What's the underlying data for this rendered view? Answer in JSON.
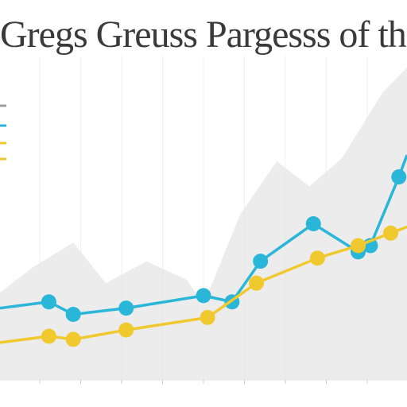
{
  "chart_data": {
    "type": "line",
    "title": "Gregs Greuss Pargesss of the Greg",
    "xlabel": "",
    "ylabel": "",
    "x_ticks": [
      "",
      "",
      "",
      "",
      "",
      "",
      "",
      "",
      "",
      ""
    ],
    "xlim": [
      0,
      10
    ],
    "ylim": [
      0,
      100
    ],
    "grid": true,
    "legend": {
      "position": "top-left",
      "entries": [
        {
          "label": "",
          "color": "#9e9e9e"
        },
        {
          "label": "",
          "color": "#29b6d8"
        },
        {
          "label": "",
          "color": "#f0c92f"
        },
        {
          "label": "",
          "color": "#f0c92f"
        }
      ]
    },
    "area": {
      "name": "",
      "color": "#e6e6e6",
      "x": [
        0,
        0.8,
        1.8,
        2.6,
        3.6,
        4.6,
        5.0,
        5.9,
        6.8,
        7.6,
        8.4,
        9.4,
        10.0
      ],
      "values": [
        28,
        36,
        44,
        31,
        38,
        32,
        24,
        53,
        70,
        62,
        71,
        92,
        100
      ]
    },
    "series": [
      {
        "name": "",
        "color": "#29b6d8",
        "x": [
          0,
          1.2,
          1.8,
          3.1,
          5.0,
          5.7,
          6.4,
          7.7,
          8.8,
          9.1,
          9.8,
          10.0
        ],
        "values": [
          23,
          25,
          21,
          23,
          27,
          25,
          38,
          50,
          41,
          43,
          65,
          72
        ]
      },
      {
        "name": "",
        "color": "#f0c92f",
        "x": [
          0,
          1.2,
          1.8,
          3.1,
          5.1,
          6.3,
          7.8,
          8.8,
          9.6,
          10.0
        ],
        "values": [
          12,
          14,
          13,
          16,
          20,
          31,
          39,
          43,
          47,
          49
        ]
      }
    ]
  }
}
